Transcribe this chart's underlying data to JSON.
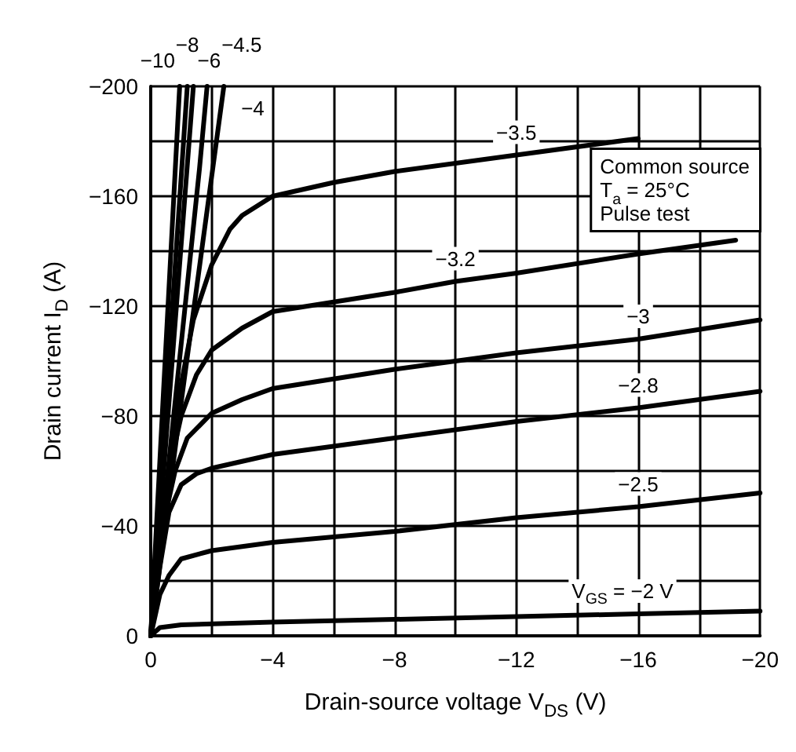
{
  "chart_data": {
    "type": "line",
    "xlabel": "Drain-source voltage V$_{DS}$ (V)",
    "ylabel": "Drain current I$_{D}$ (A)",
    "annotations": [
      "Common source",
      "T$_{a}$ = 25°C",
      "Pulse test"
    ],
    "xlim": [
      0,
      -20
    ],
    "ylim": [
      0,
      -200
    ],
    "xticks": [
      0,
      {
        "value": -2,
        "label": null
      },
      -4,
      {
        "value": -6,
        "label": null
      },
      -8,
      {
        "value": -10,
        "label": null
      },
      -12,
      {
        "value": -14,
        "label": null
      },
      -16,
      {
        "value": -18,
        "label": null
      },
      -20
    ],
    "yticks": [
      0,
      {
        "value": -20,
        "label": null
      },
      -40,
      {
        "value": -60,
        "label": null
      },
      -80,
      {
        "value": -100,
        "label": null
      },
      -120,
      {
        "value": -140,
        "label": null
      },
      -160,
      {
        "value": -180,
        "label": null
      },
      -200
    ],
    "grid": true,
    "marker": "none",
    "line_style": "solid",
    "legend": false,
    "series": [
      {
        "name": "V$_{GS}$ = −2 V",
        "color": "#000000",
        "x": [
          0,
          -0.3,
          -1,
          -4,
          -8,
          -12,
          -16,
          -20
        ],
        "values": [
          0,
          -3,
          -4,
          -5,
          -6,
          -7,
          -8,
          -9
        ]
      },
      {
        "name": "−2.5",
        "color": "#000000",
        "x": [
          0,
          -0.3,
          -0.6,
          -1,
          -2,
          -4,
          -8,
          -12,
          -16,
          -20
        ],
        "values": [
          0,
          -15,
          -22,
          -28,
          -31,
          -34,
          -38,
          -43,
          -47,
          -52
        ]
      },
      {
        "name": "−2.8",
        "color": "#000000",
        "x": [
          0,
          -0.3,
          -0.6,
          -1,
          -1.5,
          -2,
          -4,
          -8,
          -12,
          -16,
          -20
        ],
        "values": [
          0,
          -25,
          -45,
          -55,
          -59,
          -61,
          -66,
          -72,
          -78,
          -83,
          -89
        ]
      },
      {
        "name": "−3",
        "color": "#000000",
        "x": [
          0,
          -0.4,
          -0.8,
          -1.2,
          -2,
          -3,
          -4,
          -8,
          -12,
          -16,
          -20
        ],
        "values": [
          0,
          -40,
          -60,
          -72,
          -81,
          -86,
          -90,
          -97,
          -103,
          -108,
          -115
        ]
      },
      {
        "name": "−3.2",
        "color": "#000000",
        "x": [
          0,
          -0.6,
          -1,
          -1.5,
          -2,
          -3,
          -4,
          -8,
          -10,
          -12,
          -16,
          -19.2
        ],
        "values": [
          0,
          -60,
          -80,
          -95,
          -104,
          -112,
          -118,
          -125,
          -129,
          -132,
          -139,
          -144
        ]
      },
      {
        "name": "−3.5",
        "color": "#000000",
        "x": [
          0,
          -0.8,
          -1.4,
          -2,
          -2.6,
          -3,
          -4,
          -6,
          -8,
          -12,
          -16
        ],
        "values": [
          0,
          -80,
          -115,
          -135,
          -148,
          -153,
          -160,
          -165,
          -169,
          -175,
          -181
        ]
      },
      {
        "name": "−4",
        "color": "#000000",
        "x": [
          0,
          -1,
          -2.4
        ],
        "values": [
          0,
          -85,
          -200
        ]
      },
      {
        "name": "−4.5",
        "color": "#000000",
        "x": [
          0,
          -0.8,
          -1.6,
          -1.85
        ],
        "values": [
          0,
          -85,
          -170,
          -200
        ]
      },
      {
        "name": "−6",
        "color": "#000000",
        "x": [
          0,
          -0.6,
          -1.4
        ],
        "values": [
          0,
          -85,
          -200
        ]
      },
      {
        "name": "−8",
        "color": "#000000",
        "x": [
          0,
          -0.5,
          -1.2
        ],
        "values": [
          0,
          -85,
          -200
        ]
      },
      {
        "name": "−10",
        "color": "#000000",
        "x": [
          0,
          -0.4,
          -0.95
        ],
        "values": [
          0,
          -85,
          -200
        ]
      }
    ]
  }
}
